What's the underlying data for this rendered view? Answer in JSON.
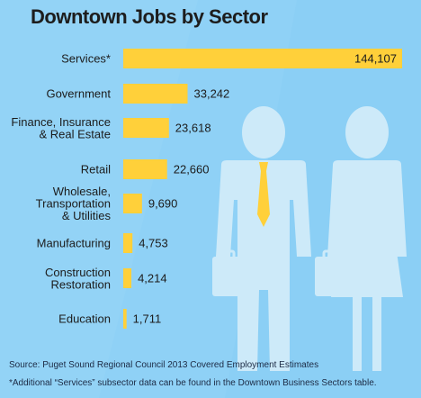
{
  "colors": {
    "background": "#8fd1f6",
    "bar": "#ffd03a",
    "figure": "#cdeaf9",
    "tie": "#ffd03a",
    "text": "#1c1c1c"
  },
  "title": "Downtown Jobs  by Sector",
  "footer": {
    "source": "Source: Puget Sound Regional Council 2013 Covered Employment Estimates",
    "note": "*Additional “Services” subsector data can be found in the Downtown Business Sectors table."
  },
  "chart_data": {
    "type": "bar",
    "orientation": "horizontal",
    "title": "Downtown Jobs  by Sector",
    "categories": [
      [
        "Services*"
      ],
      [
        "Government"
      ],
      [
        "Finance, Insurance",
        "& Real Estate"
      ],
      [
        "Retail"
      ],
      [
        "Wholesale,",
        "Transportation",
        "& Utilities"
      ],
      [
        "Manufacturing"
      ],
      [
        "Construction",
        "Restoration"
      ],
      [
        "Education"
      ]
    ],
    "values": [
      144107,
      33242,
      23618,
      22660,
      9690,
      4753,
      4214,
      1711
    ],
    "value_labels": [
      "144,107",
      "33,242",
      "23,618",
      "22,660",
      "9,690",
      "4,753",
      "4,214",
      "1,711"
    ],
    "xlim": [
      0,
      144107
    ],
    "grid": false,
    "legend": "none"
  }
}
